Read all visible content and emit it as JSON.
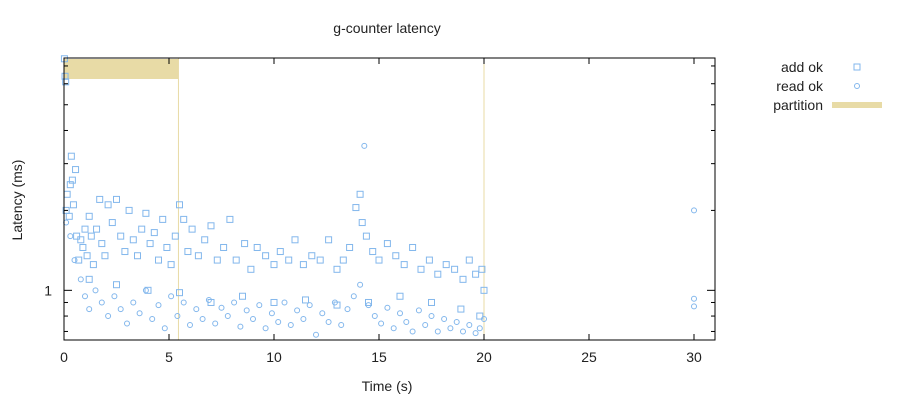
{
  "chart_data": {
    "type": "scatter",
    "title": "g-counter latency",
    "xlabel": "Time (s)",
    "ylabel": "Latency (ms)",
    "xlim": [
      0,
      31
    ],
    "ylim": [
      0.65,
      7.5
    ],
    "y_scale": "log",
    "grid": false,
    "legend_position": "top-right, outside plot",
    "x_ticks": [
      0,
      5,
      10,
      15,
      20,
      25,
      30
    ],
    "y_ticks": [
      1
    ],
    "y_minor_ticks": [
      0.7,
      0.8,
      0.9,
      2,
      3,
      4,
      5,
      6,
      7
    ],
    "colors": {
      "points": "#83b7ec",
      "partition": "#e8dba6"
    },
    "series": [
      {
        "name": "add ok",
        "marker": "square",
        "points": [
          [
            0.02,
            7.45
          ],
          [
            0.05,
            6.4
          ],
          [
            0.08,
            6.1
          ],
          [
            0.1,
            2.0
          ],
          [
            0.15,
            2.3
          ],
          [
            0.25,
            1.9
          ],
          [
            0.3,
            2.5
          ],
          [
            0.35,
            3.2
          ],
          [
            0.4,
            2.6
          ],
          [
            0.45,
            2.1
          ],
          [
            0.55,
            2.85
          ],
          [
            0.6,
            1.6
          ],
          [
            0.7,
            1.3
          ],
          [
            0.8,
            1.55
          ],
          [
            0.9,
            1.45
          ],
          [
            1.0,
            1.7
          ],
          [
            1.1,
            1.35
          ],
          [
            1.2,
            1.9
          ],
          [
            1.3,
            1.6
          ],
          [
            1.4,
            1.25
          ],
          [
            1.55,
            1.7
          ],
          [
            1.7,
            2.2
          ],
          [
            1.8,
            1.5
          ],
          [
            1.95,
            1.35
          ],
          [
            2.1,
            2.1
          ],
          [
            2.3,
            1.8
          ],
          [
            2.5,
            2.2
          ],
          [
            2.7,
            1.6
          ],
          [
            2.9,
            1.4
          ],
          [
            3.1,
            2.0
          ],
          [
            3.3,
            1.55
          ],
          [
            3.5,
            1.35
          ],
          [
            3.7,
            1.7
          ],
          [
            3.9,
            1.95
          ],
          [
            4.1,
            1.5
          ],
          [
            4.3,
            1.65
          ],
          [
            4.5,
            1.3
          ],
          [
            4.7,
            1.85
          ],
          [
            4.9,
            1.45
          ],
          [
            5.1,
            1.25
          ],
          [
            5.3,
            1.6
          ],
          [
            5.5,
            2.1
          ],
          [
            5.7,
            1.85
          ],
          [
            5.9,
            1.4
          ],
          [
            6.1,
            1.7
          ],
          [
            6.4,
            1.35
          ],
          [
            6.7,
            1.55
          ],
          [
            7.0,
            1.75
          ],
          [
            7.3,
            1.3
          ],
          [
            7.6,
            1.45
          ],
          [
            7.9,
            1.85
          ],
          [
            8.2,
            1.3
          ],
          [
            8.6,
            1.5
          ],
          [
            8.9,
            1.2
          ],
          [
            9.2,
            1.45
          ],
          [
            9.6,
            1.35
          ],
          [
            10.0,
            1.25
          ],
          [
            10.3,
            1.4
          ],
          [
            10.7,
            1.3
          ],
          [
            11.0,
            1.55
          ],
          [
            11.4,
            1.25
          ],
          [
            11.8,
            1.35
          ],
          [
            12.2,
            1.3
          ],
          [
            12.6,
            1.55
          ],
          [
            13.0,
            1.2
          ],
          [
            13.3,
            1.3
          ],
          [
            13.6,
            1.45
          ],
          [
            13.9,
            2.05
          ],
          [
            14.1,
            2.3
          ],
          [
            14.2,
            1.8
          ],
          [
            14.4,
            1.6
          ],
          [
            14.7,
            1.4
          ],
          [
            15.0,
            1.3
          ],
          [
            15.4,
            1.5
          ],
          [
            15.8,
            1.35
          ],
          [
            16.2,
            1.25
          ],
          [
            16.6,
            1.45
          ],
          [
            17.0,
            1.2
          ],
          [
            17.4,
            1.3
          ],
          [
            17.8,
            1.15
          ],
          [
            18.2,
            1.25
          ],
          [
            18.6,
            1.2
          ],
          [
            19.0,
            1.1
          ],
          [
            19.3,
            1.3
          ],
          [
            19.6,
            1.15
          ],
          [
            19.9,
            1.2
          ],
          [
            20.0,
            1.0
          ],
          [
            19.8,
            0.8
          ],
          [
            18.9,
            0.85
          ],
          [
            17.5,
            0.9
          ],
          [
            16.0,
            0.95
          ],
          [
            14.5,
            0.9
          ],
          [
            13.0,
            0.88
          ],
          [
            11.5,
            0.92
          ],
          [
            10.0,
            0.9
          ],
          [
            8.5,
            0.95
          ],
          [
            7.0,
            0.9
          ],
          [
            5.5,
            0.98
          ],
          [
            4.0,
            1.0
          ],
          [
            2.5,
            1.05
          ],
          [
            1.2,
            1.1
          ]
        ]
      },
      {
        "name": "read ok",
        "marker": "circle",
        "points": [
          [
            0.1,
            1.8
          ],
          [
            0.3,
            1.6
          ],
          [
            0.5,
            1.3
          ],
          [
            0.8,
            1.1
          ],
          [
            1.0,
            0.95
          ],
          [
            1.2,
            0.85
          ],
          [
            1.5,
            1.0
          ],
          [
            1.8,
            0.9
          ],
          [
            2.1,
            0.8
          ],
          [
            2.4,
            0.95
          ],
          [
            2.7,
            0.85
          ],
          [
            3.0,
            0.75
          ],
          [
            3.3,
            0.9
          ],
          [
            3.6,
            0.82
          ],
          [
            3.9,
            1.0
          ],
          [
            4.2,
            0.78
          ],
          [
            4.5,
            0.88
          ],
          [
            4.8,
            0.72
          ],
          [
            5.1,
            0.95
          ],
          [
            5.4,
            0.8
          ],
          [
            5.7,
            0.9
          ],
          [
            6.0,
            0.74
          ],
          [
            6.3,
            0.85
          ],
          [
            6.6,
            0.78
          ],
          [
            6.9,
            0.92
          ],
          [
            7.2,
            0.75
          ],
          [
            7.5,
            0.86
          ],
          [
            7.8,
            0.8
          ],
          [
            8.1,
            0.9
          ],
          [
            8.4,
            0.73
          ],
          [
            8.7,
            0.84
          ],
          [
            9.0,
            0.78
          ],
          [
            9.3,
            0.88
          ],
          [
            9.6,
            0.72
          ],
          [
            9.9,
            0.82
          ],
          [
            10.2,
            0.76
          ],
          [
            10.5,
            0.9
          ],
          [
            10.8,
            0.74
          ],
          [
            11.1,
            0.84
          ],
          [
            11.4,
            0.78
          ],
          [
            11.7,
            0.88
          ],
          [
            12.0,
            0.68
          ],
          [
            12.3,
            0.82
          ],
          [
            12.6,
            0.76
          ],
          [
            12.9,
            0.9
          ],
          [
            13.2,
            0.74
          ],
          [
            13.5,
            0.85
          ],
          [
            13.8,
            0.95
          ],
          [
            14.1,
            1.05
          ],
          [
            14.3,
            3.5
          ],
          [
            14.5,
            0.88
          ],
          [
            14.8,
            0.8
          ],
          [
            15.1,
            0.75
          ],
          [
            15.4,
            0.86
          ],
          [
            15.7,
            0.72
          ],
          [
            16.0,
            0.82
          ],
          [
            16.3,
            0.76
          ],
          [
            16.6,
            0.7
          ],
          [
            16.9,
            0.84
          ],
          [
            17.2,
            0.74
          ],
          [
            17.5,
            0.8
          ],
          [
            17.8,
            0.7
          ],
          [
            18.1,
            0.78
          ],
          [
            18.4,
            0.72
          ],
          [
            18.7,
            0.76
          ],
          [
            19.0,
            0.7
          ],
          [
            19.3,
            0.74
          ],
          [
            19.6,
            0.69
          ],
          [
            19.8,
            0.72
          ],
          [
            20.0,
            0.78
          ],
          [
            30.0,
            2.0
          ],
          [
            30.0,
            0.93
          ],
          [
            30.0,
            0.87
          ]
        ]
      }
    ],
    "shapes": [
      {
        "label": "partition",
        "type": "band",
        "x_start": 0.0,
        "x_end": 5.45
      }
    ],
    "partition_markers": [
      5.45,
      20.0
    ],
    "legend": [
      {
        "label": "add ok",
        "marker": "square"
      },
      {
        "label": "read ok",
        "marker": "circle"
      },
      {
        "label": "partition",
        "marker": "bar"
      }
    ]
  }
}
